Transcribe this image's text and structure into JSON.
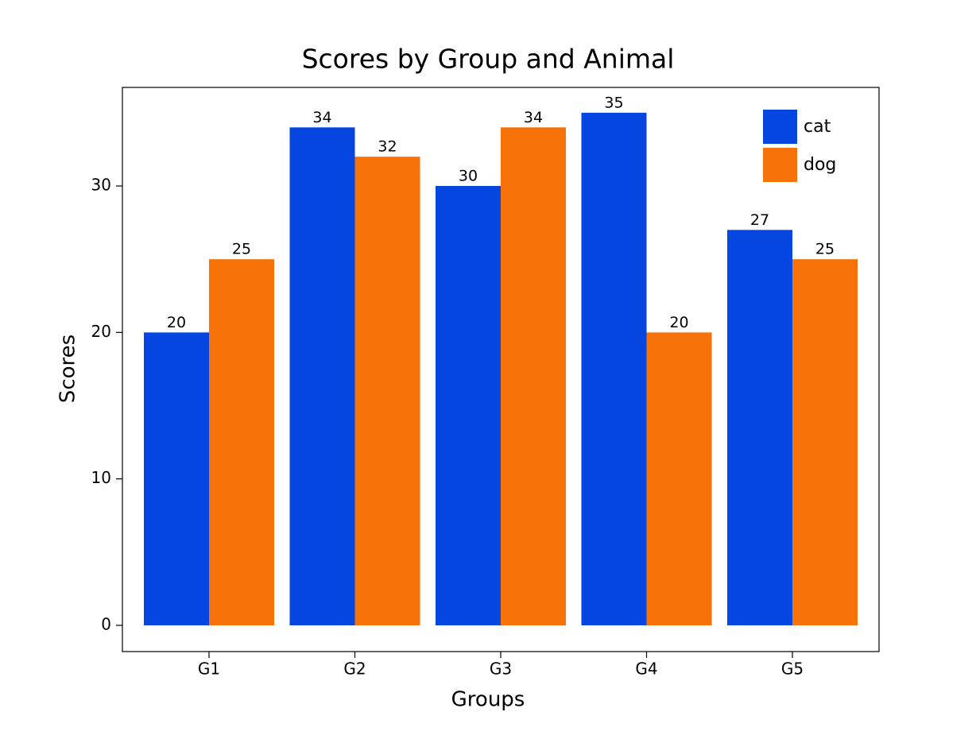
{
  "chart_data": {
    "type": "bar",
    "title": "Scores by Group and Animal",
    "x_label": "Groups",
    "y_label": "Scores",
    "categories": [
      "G1",
      "G2",
      "G3",
      "G4",
      "G5"
    ],
    "series": [
      {
        "name": "cat",
        "color": "#0546e0",
        "values": [
          20,
          34,
          30,
          35,
          27
        ]
      },
      {
        "name": "dog",
        "color": "#f8720a",
        "values": [
          25,
          32,
          34,
          20,
          25
        ]
      }
    ],
    "ylim": [
      -1.79,
      36.73
    ],
    "yticks": [
      0,
      10,
      20,
      30
    ],
    "grid": false,
    "legend": "upper right",
    "value_labels_shown": true
  }
}
